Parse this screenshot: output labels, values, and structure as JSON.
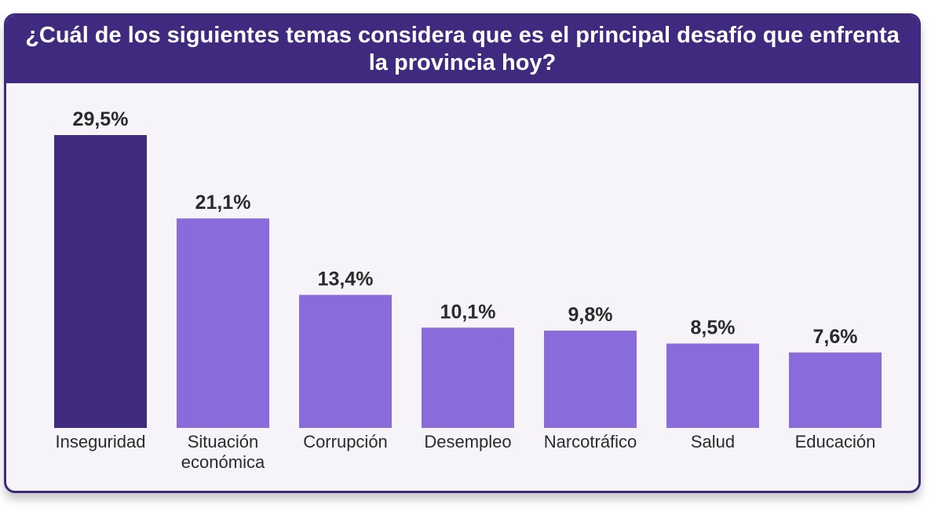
{
  "title": "¿Cuál de los siguientes temas considera que es el principal desafío que enfrenta la provincia hoy?",
  "colors": {
    "frame": "#3f2a80",
    "highlight_bar": "#3f2a80",
    "bar": "#8a6bdc",
    "background": "#f6f4f9"
  },
  "chart_data": {
    "type": "bar",
    "title": "¿Cuál de los siguientes temas considera que es el principal desafío que enfrenta la provincia hoy?",
    "categories": [
      "Inseguridad",
      "Situación económica",
      "Corrupción",
      "Desempleo",
      "Narcotráfico",
      "Salud",
      "Educación"
    ],
    "values": [
      29.5,
      21.1,
      13.4,
      10.1,
      9.8,
      8.5,
      7.6
    ],
    "labels": [
      "29,5%",
      "21,1%",
      "13,4%",
      "10,1%",
      "9,8%",
      "8,5%",
      "7,6%"
    ],
    "unit": "%",
    "highlight_index": 0,
    "xlabel": "",
    "ylabel": "",
    "grid": false,
    "legend": "none"
  }
}
